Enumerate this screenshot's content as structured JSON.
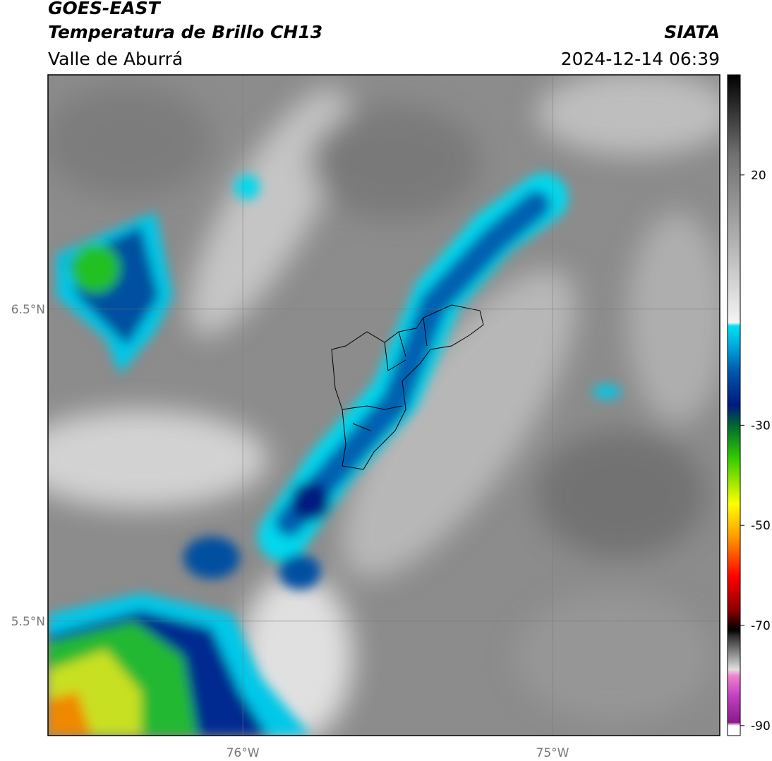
{
  "header": {
    "title": "GOES-EAST",
    "subtitle": "Temperatura de Brillo CH13",
    "region": "Valle de Aburrá",
    "source": "SIATA",
    "datetime": "2024-12-14 06:39"
  },
  "map": {
    "xlim": [
      -76.629,
      -74.46
    ],
    "ylim": [
      5.133,
      7.251
    ],
    "xticks": [
      {
        "value": -76,
        "label": "76°W"
      },
      {
        "value": -75,
        "label": "75°W"
      }
    ],
    "yticks": [
      {
        "value": 6.5,
        "label": "6.5°N"
      },
      {
        "value": 5.5,
        "label": "5.5°N"
      }
    ],
    "grid": true
  },
  "colorbar": {
    "clim": [
      -92,
      40
    ],
    "ticks": [
      20,
      -30,
      -50,
      -70,
      -90
    ]
  }
}
